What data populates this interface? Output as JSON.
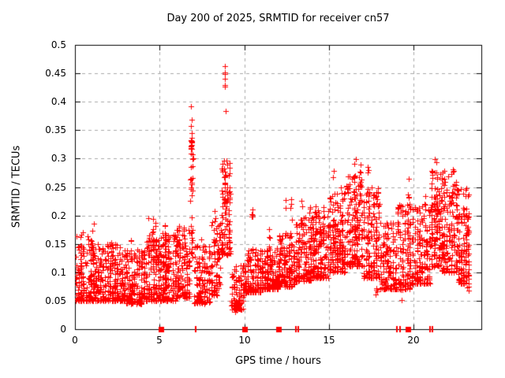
{
  "chart_data": {
    "type": "scatter",
    "title": "Day 200 of 2025, SRMTID for receiver cn57",
    "xlabel": "GPS time / hours",
    "ylabel": "SRMTID / TECUs",
    "xlim": [
      0,
      24
    ],
    "ylim": [
      0,
      0.5
    ],
    "xtick_values": [
      0,
      5,
      10,
      15,
      20
    ],
    "xtick_labels": [
      "0",
      "5",
      "10",
      "15",
      "20"
    ],
    "ytick_values": [
      0,
      0.05,
      0.1,
      0.15,
      0.2,
      0.25,
      0.3,
      0.35,
      0.4,
      0.45,
      0.5
    ],
    "ytick_labels": [
      "0",
      "0.05",
      "0.1",
      "0.15",
      "0.2",
      "0.25",
      "0.3",
      "0.35",
      "0.4",
      "0.45",
      "0.5"
    ],
    "grid": true,
    "legend": false,
    "marker": "plus",
    "marker_size": 7,
    "colors": {
      "marker": "#ff0000",
      "grid": "#a8a8a8",
      "axis": "#000000",
      "background": "#ffffff",
      "text": "#000000"
    },
    "seed": 7,
    "baseline_segments": [
      {
        "t0": 0.0,
        "t1": 1.0,
        "n": 150,
        "lo": 0.05,
        "hi": 0.17,
        "k": 2.0
      },
      {
        "t0": 1.0,
        "t1": 2.0,
        "n": 150,
        "lo": 0.05,
        "hi": 0.15,
        "k": 2.0
      },
      {
        "t0": 2.0,
        "t1": 3.0,
        "n": 150,
        "lo": 0.05,
        "hi": 0.15,
        "k": 2.0
      },
      {
        "t0": 3.0,
        "t1": 4.0,
        "n": 140,
        "lo": 0.045,
        "hi": 0.14,
        "k": 2.0
      },
      {
        "t0": 4.0,
        "t1": 5.0,
        "n": 150,
        "lo": 0.05,
        "hi": 0.16,
        "k": 1.8
      },
      {
        "t0": 5.0,
        "t1": 6.0,
        "n": 150,
        "lo": 0.05,
        "hi": 0.17,
        "k": 1.8
      },
      {
        "t0": 6.0,
        "t1": 6.8,
        "n": 120,
        "lo": 0.055,
        "hi": 0.18,
        "k": 1.8
      },
      {
        "t0": 6.8,
        "t1": 7.0,
        "n": 30,
        "lo": 0.12,
        "hi": 0.34,
        "k": 1.0
      },
      {
        "t0": 7.0,
        "t1": 8.0,
        "n": 130,
        "lo": 0.045,
        "hi": 0.15,
        "k": 2.0
      },
      {
        "t0": 8.0,
        "t1": 8.6,
        "n": 80,
        "lo": 0.06,
        "hi": 0.19,
        "k": 1.8
      },
      {
        "t0": 8.6,
        "t1": 9.2,
        "n": 90,
        "lo": 0.13,
        "hi": 0.3,
        "k": 1.2
      },
      {
        "t0": 9.2,
        "t1": 10.0,
        "n": 90,
        "lo": 0.035,
        "hi": 0.115,
        "k": 1.8
      },
      {
        "t0": 10.0,
        "t1": 11.0,
        "n": 150,
        "lo": 0.065,
        "hi": 0.14,
        "k": 2.0
      },
      {
        "t0": 11.0,
        "t1": 12.0,
        "n": 150,
        "lo": 0.07,
        "hi": 0.145,
        "k": 2.0
      },
      {
        "t0": 12.0,
        "t1": 13.0,
        "n": 150,
        "lo": 0.075,
        "hi": 0.17,
        "k": 1.9
      },
      {
        "t0": 13.0,
        "t1": 14.0,
        "n": 150,
        "lo": 0.085,
        "hi": 0.2,
        "k": 1.9
      },
      {
        "t0": 14.0,
        "t1": 15.0,
        "n": 150,
        "lo": 0.09,
        "hi": 0.21,
        "k": 1.9
      },
      {
        "t0": 15.0,
        "t1": 16.0,
        "n": 150,
        "lo": 0.1,
        "hi": 0.24,
        "k": 1.8
      },
      {
        "t0": 16.0,
        "t1": 17.0,
        "n": 160,
        "lo": 0.11,
        "hi": 0.27,
        "k": 1.7
      },
      {
        "t0": 17.0,
        "t1": 18.0,
        "n": 150,
        "lo": 0.09,
        "hi": 0.25,
        "k": 1.8
      },
      {
        "t0": 18.0,
        "t1": 19.0,
        "n": 130,
        "lo": 0.07,
        "hi": 0.19,
        "k": 2.0
      },
      {
        "t0": 19.0,
        "t1": 20.0,
        "n": 130,
        "lo": 0.07,
        "hi": 0.22,
        "k": 1.9
      },
      {
        "t0": 20.0,
        "t1": 21.0,
        "n": 140,
        "lo": 0.08,
        "hi": 0.22,
        "k": 1.8
      },
      {
        "t0": 21.0,
        "t1": 21.6,
        "n": 100,
        "lo": 0.11,
        "hi": 0.28,
        "k": 1.5
      },
      {
        "t0": 21.6,
        "t1": 22.6,
        "n": 150,
        "lo": 0.1,
        "hi": 0.28,
        "k": 1.7
      },
      {
        "t0": 22.6,
        "t1": 23.3,
        "n": 120,
        "lo": 0.08,
        "hi": 0.25,
        "k": 1.8
      }
    ],
    "spikes": [
      {
        "t": 1.05,
        "n": 6,
        "y0": 0.13,
        "y1": 0.19
      },
      {
        "t": 2.1,
        "n": 5,
        "y0": 0.12,
        "y1": 0.16
      },
      {
        "t": 3.35,
        "n": 5,
        "y0": 0.12,
        "y1": 0.165
      },
      {
        "t": 3.9,
        "n": 3,
        "y0": 0.035,
        "y1": 0.055
      },
      {
        "t": 4.35,
        "n": 8,
        "y0": 0.13,
        "y1": 0.205
      },
      {
        "t": 4.6,
        "n": 7,
        "y0": 0.13,
        "y1": 0.2
      },
      {
        "t": 4.8,
        "n": 5,
        "y0": 0.12,
        "y1": 0.19
      },
      {
        "t": 5.3,
        "n": 7,
        "y0": 0.12,
        "y1": 0.195
      },
      {
        "t": 5.95,
        "n": 8,
        "y0": 0.13,
        "y1": 0.22
      },
      {
        "t": 6.15,
        "n": 5,
        "y0": 0.12,
        "y1": 0.2
      },
      {
        "t": 6.45,
        "n": 5,
        "y0": 0.12,
        "y1": 0.18
      },
      {
        "t": 6.87,
        "n": 10,
        "y0": 0.2,
        "y1": 0.335
      },
      {
        "t": 7.35,
        "n": 4,
        "y0": 0.04,
        "y1": 0.06
      },
      {
        "t": 7.5,
        "n": 4,
        "y0": 0.12,
        "y1": 0.165
      },
      {
        "t": 8.3,
        "n": 6,
        "y0": 0.14,
        "y1": 0.24
      },
      {
        "t": 8.87,
        "n": 12,
        "y0": 0.18,
        "y1": 0.31
      },
      {
        "t": 9.05,
        "n": 6,
        "y0": 0.14,
        "y1": 0.26
      },
      {
        "t": 9.5,
        "n": 4,
        "y0": 0.03,
        "y1": 0.05
      },
      {
        "t": 10.45,
        "n": 8,
        "y0": 0.11,
        "y1": 0.215
      },
      {
        "t": 11.5,
        "n": 6,
        "y0": 0.11,
        "y1": 0.18
      },
      {
        "t": 12.4,
        "n": 8,
        "y0": 0.11,
        "y1": 0.23
      },
      {
        "t": 12.75,
        "n": 6,
        "y0": 0.12,
        "y1": 0.245
      },
      {
        "t": 13.4,
        "n": 8,
        "y0": 0.12,
        "y1": 0.235
      },
      {
        "t": 13.9,
        "n": 7,
        "y0": 0.13,
        "y1": 0.24
      },
      {
        "t": 14.2,
        "n": 9,
        "y0": 0.13,
        "y1": 0.245
      },
      {
        "t": 14.65,
        "n": 7,
        "y0": 0.12,
        "y1": 0.22
      },
      {
        "t": 15.3,
        "n": 10,
        "y0": 0.14,
        "y1": 0.285
      },
      {
        "t": 15.75,
        "n": 8,
        "y0": 0.14,
        "y1": 0.26
      },
      {
        "t": 16.55,
        "n": 14,
        "y0": 0.16,
        "y1": 0.31
      },
      {
        "t": 16.85,
        "n": 10,
        "y0": 0.16,
        "y1": 0.3
      },
      {
        "t": 17.3,
        "n": 10,
        "y0": 0.15,
        "y1": 0.29
      },
      {
        "t": 17.8,
        "n": 4,
        "y0": 0.055,
        "y1": 0.08
      },
      {
        "t": 18.35,
        "n": 6,
        "y0": 0.11,
        "y1": 0.21
      },
      {
        "t": 19.3,
        "n": 3,
        "y0": 0.05,
        "y1": 0.07
      },
      {
        "t": 19.7,
        "n": 10,
        "y0": 0.13,
        "y1": 0.27
      },
      {
        "t": 20.75,
        "n": 8,
        "y0": 0.13,
        "y1": 0.25
      },
      {
        "t": 21.3,
        "n": 14,
        "y0": 0.15,
        "y1": 0.3
      },
      {
        "t": 21.5,
        "n": 8,
        "y0": 0.14,
        "y1": 0.27
      },
      {
        "t": 22.3,
        "n": 12,
        "y0": 0.15,
        "y1": 0.295
      },
      {
        "t": 22.55,
        "n": 8,
        "y0": 0.14,
        "y1": 0.27
      },
      {
        "t": 23.15,
        "n": 10,
        "y0": 0.13,
        "y1": 0.26
      },
      {
        "t": 23.2,
        "n": 4,
        "y0": 0.065,
        "y1": 0.09
      }
    ],
    "outlier_points": [
      [
        6.87,
        0.392
      ],
      [
        6.9,
        0.368
      ],
      [
        6.85,
        0.357
      ],
      [
        6.88,
        0.345
      ],
      [
        6.84,
        0.332
      ],
      [
        6.9,
        0.328
      ],
      [
        6.95,
        0.287
      ],
      [
        7.0,
        0.3
      ],
      [
        8.85,
        0.462
      ],
      [
        8.85,
        0.452
      ],
      [
        8.86,
        0.449
      ],
      [
        8.84,
        0.441
      ],
      [
        8.85,
        0.43
      ],
      [
        8.87,
        0.426
      ],
      [
        8.9,
        0.383
      ]
    ],
    "zero_markers": {
      "squares": [
        5.06,
        10.02,
        12.02,
        19.67
      ],
      "bars": [
        7.13,
        13.05,
        13.2,
        19.03,
        19.18,
        20.97,
        21.1
      ]
    }
  }
}
